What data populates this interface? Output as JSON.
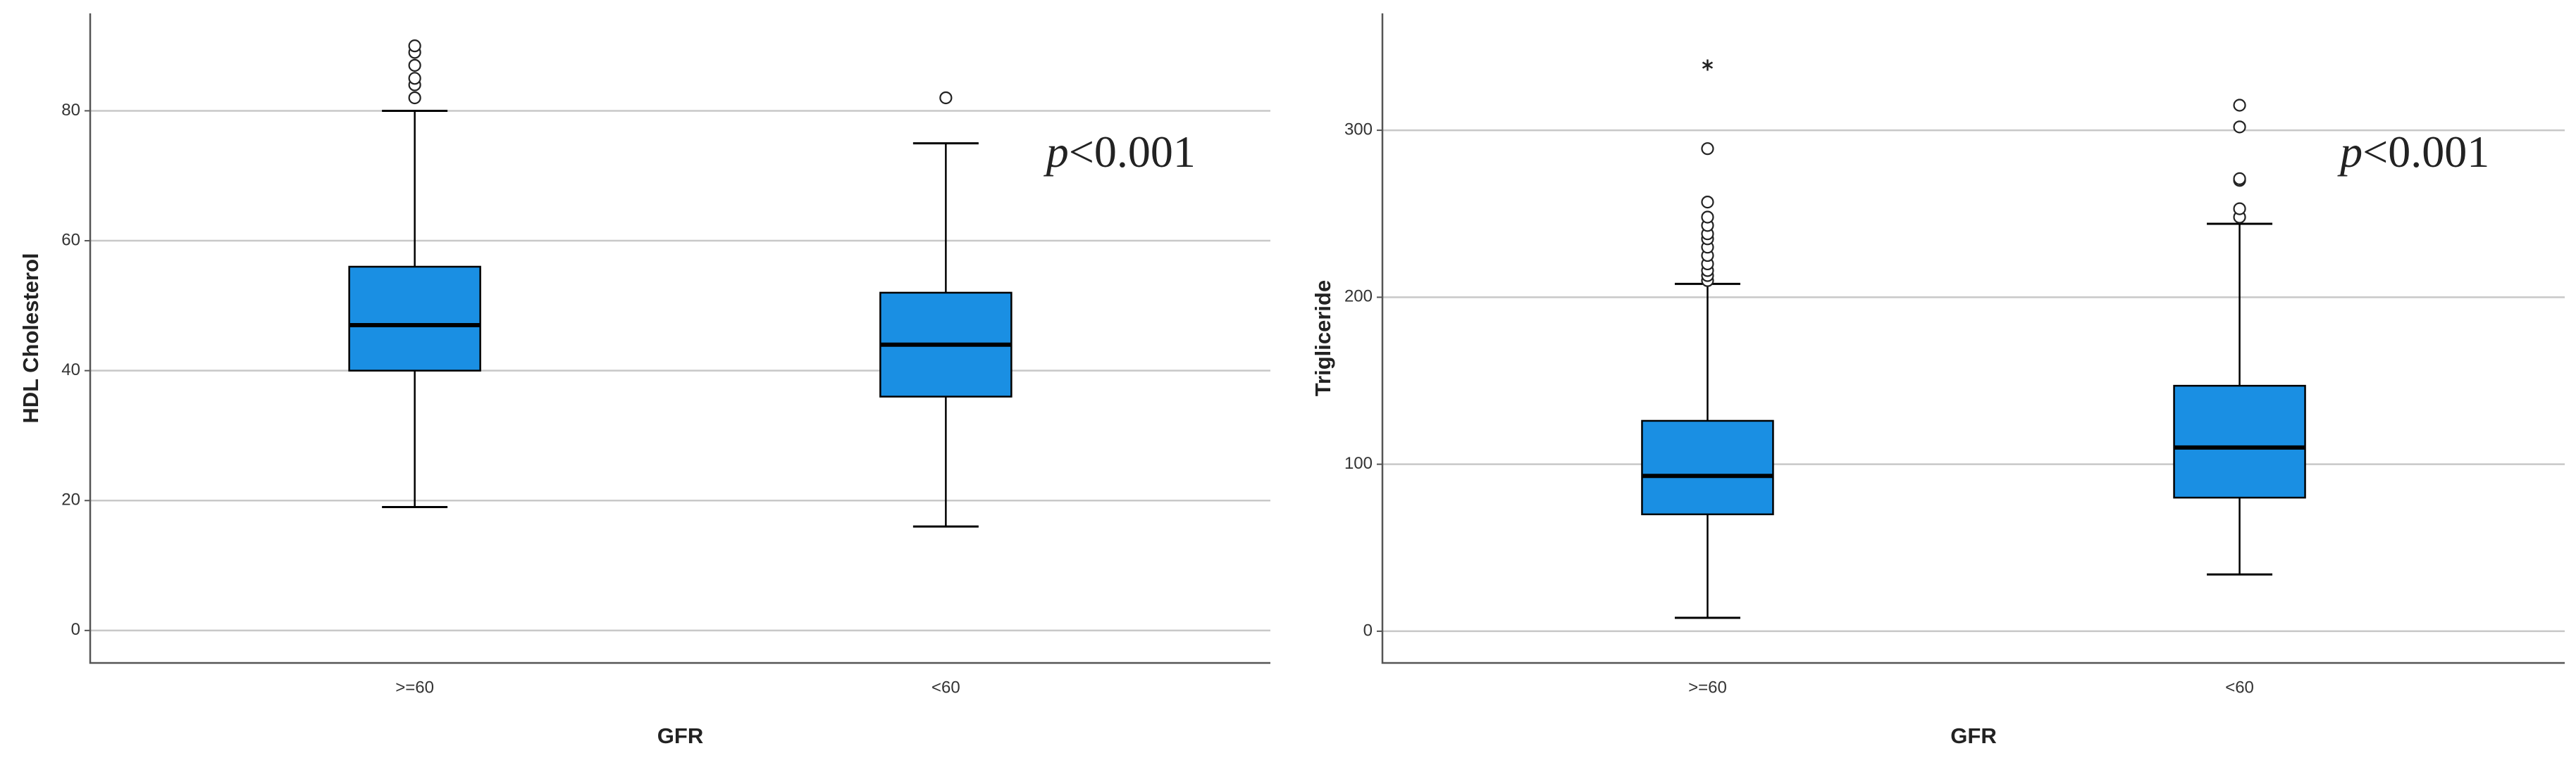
{
  "chart_data": [
    {
      "type": "box",
      "x_label": "GFR",
      "y_label": "HDL Cholesterol",
      "categories": [
        ">=60",
        "<60"
      ],
      "color": "#1a8fe3",
      "grid": true,
      "ylim": [
        -5,
        95
      ],
      "yticks": [
        0,
        20,
        40,
        60,
        80
      ],
      "annotation": {
        "italic": "p",
        "text": "<0.001"
      },
      "boxes": [
        {
          "whisker_low": 19,
          "q1": 40,
          "median": 47,
          "q3": 56,
          "whisker_high": 80,
          "outliers": [
            82,
            84,
            85,
            87,
            89,
            90
          ],
          "extremes": []
        },
        {
          "whisker_low": 16,
          "q1": 36,
          "median": 44,
          "q3": 52,
          "whisker_high": 75,
          "outliers": [
            82
          ],
          "extremes": []
        }
      ]
    },
    {
      "type": "box",
      "x_label": "GFR",
      "y_label": "Trigliceride",
      "categories": [
        ">=60",
        "<60"
      ],
      "color": "#1a8fe3",
      "grid": true,
      "ylim": [
        -19,
        370
      ],
      "yticks": [
        0,
        100,
        200,
        300
      ],
      "annotation": {
        "italic": "p",
        "text": "<0.001"
      },
      "boxes": [
        {
          "whisker_low": 8,
          "q1": 70,
          "median": 93,
          "q3": 126,
          "whisker_high": 208,
          "outliers": [
            210,
            213,
            216,
            220,
            225,
            230,
            235,
            238,
            243,
            248,
            257,
            289
          ],
          "extremes": [
            339
          ]
        },
        {
          "whisker_low": 34,
          "q1": 80,
          "median": 110,
          "q3": 147,
          "whisker_high": 244,
          "outliers": [
            248,
            253,
            270,
            271,
            302,
            315
          ],
          "extremes": []
        }
      ]
    }
  ]
}
